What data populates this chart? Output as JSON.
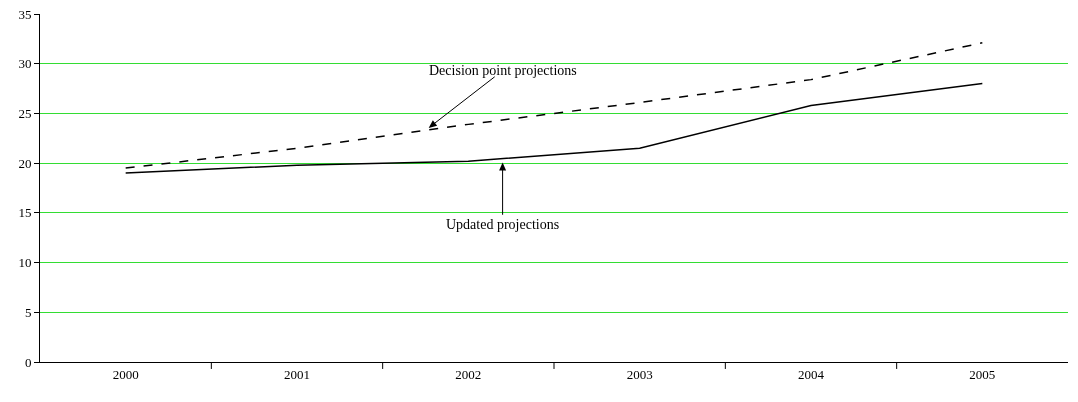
{
  "chart_data": {
    "type": "line",
    "categories": [
      "2000",
      "2001",
      "2002",
      "2003",
      "2004",
      "2005"
    ],
    "series": [
      {
        "name": "Decision point projections",
        "color": "#000000",
        "line_style": "dashed",
        "values": [
          19.5,
          21.5,
          23.9,
          26.1,
          28.4,
          32.1
        ]
      },
      {
        "name": "Updated projections",
        "color": "#000000",
        "line_style": "solid",
        "values": [
          19.0,
          19.8,
          20.2,
          21.5,
          25.8,
          28.0
        ]
      }
    ],
    "ylim": [
      0,
      35
    ],
    "yticks": [
      0,
      5,
      10,
      15,
      20,
      25,
      30,
      35
    ],
    "grid": "y",
    "legend": false,
    "marker": "none"
  }
}
